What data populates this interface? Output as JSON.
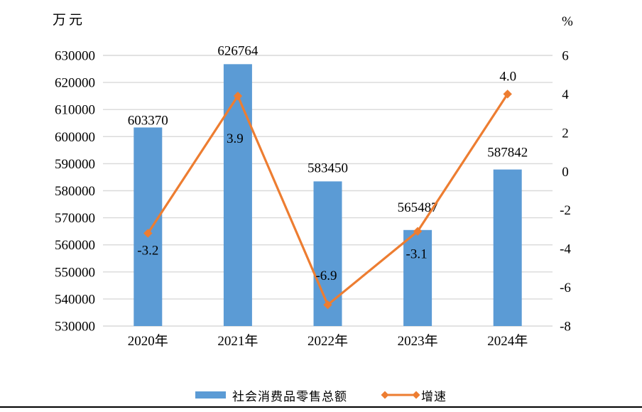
{
  "chart_data": {
    "type": "bar",
    "subtype": "bar-line-combo",
    "title": "",
    "categories": [
      "2020年",
      "2021年",
      "2022年",
      "2023年",
      "2024年"
    ],
    "series": [
      {
        "name": "社会消费品零售总额",
        "chart": "bar",
        "axis": "left",
        "color": "#5B9BD5",
        "values": [
          603370,
          626764,
          583450,
          565487,
          587842
        ],
        "labels": [
          "603370",
          "626764",
          "583450",
          "565487",
          "587842"
        ]
      },
      {
        "name": "增速",
        "chart": "line",
        "axis": "right",
        "color": "#ED7D31",
        "marker": "diamond",
        "values": [
          -3.2,
          3.9,
          -6.9,
          -3.1,
          4.0
        ],
        "labels": [
          "-3.2",
          "3.9",
          "-6.9",
          "-3.1",
          "4.0"
        ]
      }
    ],
    "left_axis": {
      "unit": "万元",
      "min": 530000,
      "max": 630000,
      "step": 10000,
      "tick_labels": [
        "630000",
        "620000",
        "610000",
        "600000",
        "590000",
        "580000",
        "570000",
        "560000",
        "550000",
        "540000",
        "530000"
      ]
    },
    "right_axis": {
      "unit": "%",
      "min": -8,
      "max": 6,
      "step": 2,
      "tick_labels": [
        "6",
        "4",
        "2",
        "0",
        "-2",
        "-4",
        "-6",
        "-8"
      ]
    },
    "grid": true,
    "grid_color": "#D9D9D9",
    "legend_position": "bottom"
  }
}
